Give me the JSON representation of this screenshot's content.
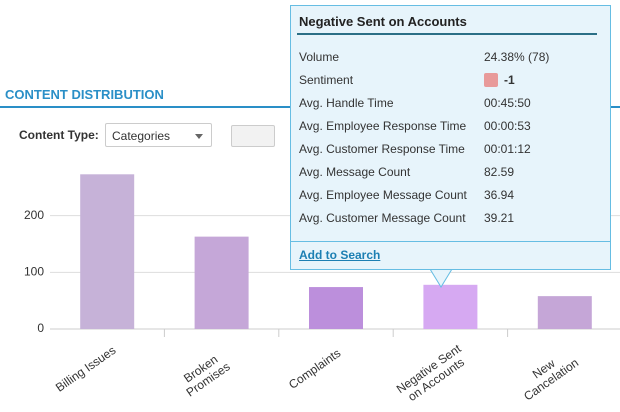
{
  "header": {
    "title": "CONTENT DISTRIBUTION"
  },
  "controls": {
    "content_type_label": "Content Type:",
    "content_type_value": "Categories"
  },
  "chart_data": {
    "type": "bar",
    "categories": [
      "Billing Issues",
      "Broken Promises",
      "Complaints",
      "Negative Sent on Accounts",
      "New Cancelation"
    ],
    "values": [
      273,
      163,
      74,
      78,
      58
    ],
    "colors": [
      "#c6b2d8",
      "#c5a7d8",
      "#bc8fdc",
      "#d6a9f2",
      "#c5a6d7"
    ],
    "ylim": [
      0,
      300
    ],
    "yticks": [
      0,
      100,
      200
    ],
    "grid": true
  },
  "tooltip": {
    "title": "Negative Sent on Accounts",
    "rows": [
      {
        "label": "Volume",
        "value": "24.38% (78)"
      },
      {
        "label": "Sentiment",
        "value": "-1"
      },
      {
        "label": "Avg. Handle Time",
        "value": "00:45:50"
      },
      {
        "label": "Avg. Employee Response Time",
        "value": "00:00:53"
      },
      {
        "label": "Avg. Customer Response Time",
        "value": "00:01:12"
      },
      {
        "label": "Avg. Message Count",
        "value": "82.59"
      },
      {
        "label": "Avg. Employee Message Count",
        "value": "36.94"
      },
      {
        "label": "Avg. Customer Message Count",
        "value": "39.21"
      }
    ],
    "link": "Add to Search"
  }
}
